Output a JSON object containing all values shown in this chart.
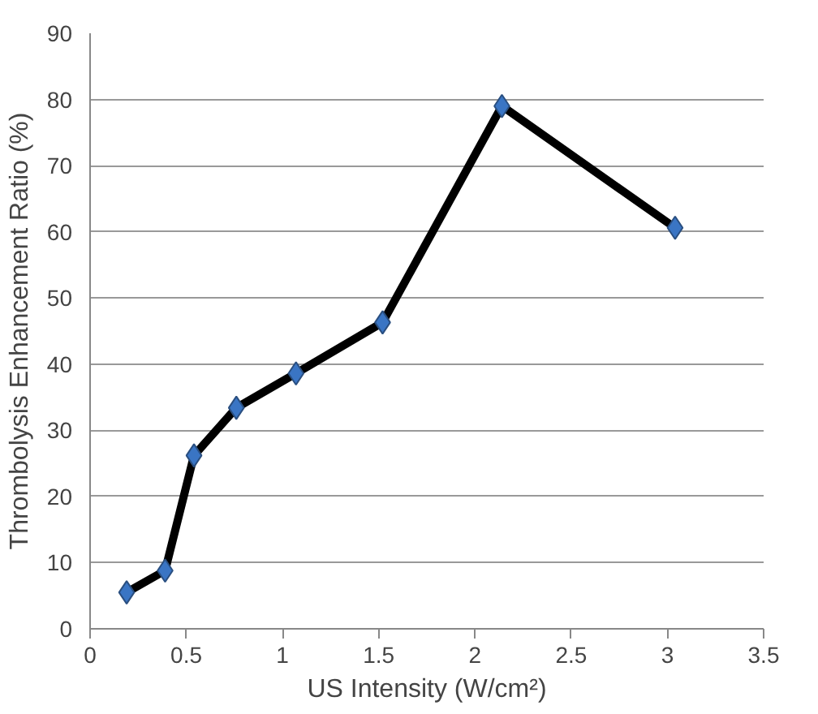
{
  "chart_data": {
    "type": "line",
    "xlabel": "US Intensity (W/cm²)",
    "ylabel": "Thrombolysis Enhancement Ratio (%)",
    "x": [
      0.19,
      0.39,
      0.54,
      0.76,
      1.07,
      1.52,
      2.14,
      3.04
    ],
    "series": [
      {
        "color": "#000000",
        "values": [
          5.5,
          8.8,
          26.2,
          33.4,
          38.6,
          46.3,
          79.0,
          60.6
        ]
      }
    ],
    "marker": "diamond",
    "line_style": "solid",
    "grid": "y",
    "xlim": [
      0,
      3.5
    ],
    "xticks": [
      0,
      0.5,
      1,
      1.5,
      2,
      2.5,
      3,
      3.5
    ],
    "ylim": [
      0,
      90
    ],
    "yticks": [
      0,
      10,
      20,
      30,
      40,
      50,
      60,
      70,
      80,
      90
    ]
  }
}
